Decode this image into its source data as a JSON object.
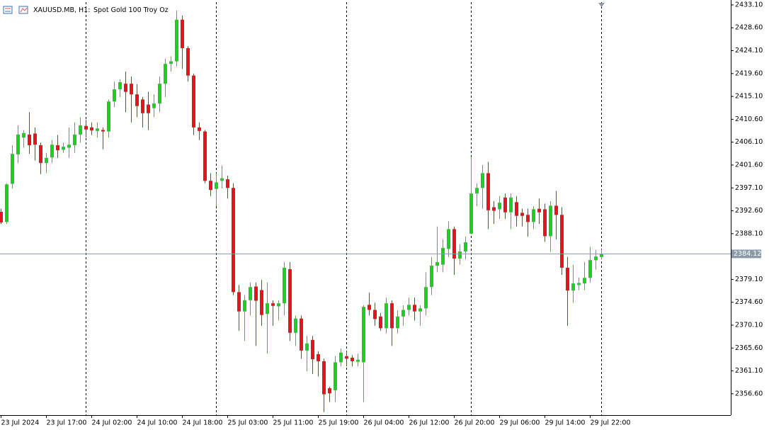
{
  "chart_data": {
    "type": "candlestick",
    "title": "XAUUSD.MB, H1:",
    "subtitle": "Spot Gold 100 Troy Oz",
    "categories": [
      "23 Jul 2024",
      null,
      null,
      null,
      null,
      null,
      null,
      null,
      "23 Jul 17:00",
      null,
      null,
      null,
      null,
      null,
      null,
      null,
      "24 Jul 02:00",
      null,
      null,
      null,
      null,
      null,
      null,
      null,
      "24 Jul 10:00",
      null,
      null,
      null,
      null,
      null,
      null,
      null,
      "24 Jul 18:00",
      null,
      null,
      null,
      null,
      null,
      null,
      null,
      "25 Jul 03:00",
      null,
      null,
      null,
      null,
      null,
      null,
      null,
      "25 Jul 11:00",
      null,
      null,
      null,
      null,
      null,
      null,
      null,
      "25 Jul 19:00",
      null,
      null,
      null,
      null,
      null,
      null,
      null,
      "26 Jul 04:00",
      null,
      null,
      null,
      null,
      null,
      null,
      null,
      "26 Jul 12:00",
      null,
      null,
      null,
      null,
      null,
      null,
      null,
      "26 Jul 20:00",
      null,
      null,
      null,
      null,
      null,
      null,
      null,
      "29 Jul 06:00",
      null,
      null,
      null,
      null,
      null,
      null,
      null,
      "29 Jul 14:00",
      null,
      null,
      null,
      null,
      null,
      null,
      null,
      "29 Jul 22:00",
      null,
      null
    ],
    "open": [
      2392.4,
      2390.4,
      2397.9,
      2403.7,
      2407,
      2407.6,
      2407.8,
      2405.5,
      2402,
      2403.1,
      2405.5,
      2404.6,
      2405,
      2405.5,
      2407.6,
      2409.3,
      2409,
      2408.3,
      2408.5,
      2408.2,
      2414.1,
      2416.5,
      2417.6,
      2417.6,
      2415.5,
      2414.5,
      2413.5,
      2412.8,
      2413.7,
      2417.6,
      2421.5,
      2422,
      2430.2,
      2424.6,
      2419.2,
      2409,
      2408.2,
      2398.5,
      2396.9,
      2398.5,
      2398.8,
      2397.1,
      2376.6,
      2372.8,
      2375,
      2377.7,
      2377,
      2372.3,
      2374.4,
      2373.8,
      2374.4,
      2381.1,
      2368.6,
      2371.4,
      2365.1,
      2367.2,
      2364.4,
      2363,
      2357.7,
      2357.3,
      2362.8,
      2364,
      2363.7,
      2362.9,
      2362.8,
      2374.1,
      2373.1,
      2371.8,
      2369.5,
      2374.4,
      2369.5,
      2371.8,
      2373.1,
      2374.1,
      2372.8,
      2373.4,
      2377.6,
      2381.8,
      2382,
      2385.1,
      2389,
      2383.2,
      2384.6,
      2388.1,
      2396,
      2397.1,
      2400,
      2393.3,
      2392.9,
      2395.2,
      2392.3,
      2394.3,
      2392.2,
      2391.8,
      2390.4,
      2393,
      2392.9,
      2387.6,
      2393.6,
      2391.8,
      2381.4,
      2376.9,
      2378,
      2378.3,
      2379.4,
      2382.9,
      2383.5
    ],
    "high": [
      2393,
      2398,
      2405.5,
      2409.4,
      2408.5,
      2412,
      2409,
      2406,
      2404,
      2406.5,
      2407.5,
      2406,
      2409,
      2410,
      2411,
      2410.5,
      2410,
      2410,
      2409,
      2414.5,
      2418,
      2418.5,
      2420,
      2419,
      2417.5,
      2415,
      2416,
      2415.5,
      2419,
      2422.5,
      2423,
      2432,
      2431,
      2425,
      2419.6,
      2410,
      2408.5,
      2400,
      2400,
      2401.5,
      2399.5,
      2398,
      2378,
      2376,
      2378.5,
      2378.5,
      2379,
      2378.5,
      2375,
      2375,
      2382.5,
      2382.5,
      2372,
      2372,
      2368,
      2368,
      2365,
      2363.5,
      2358,
      2364,
      2365.5,
      2365,
      2364.2,
      2364.5,
      2374,
      2376.5,
      2374.5,
      2372.5,
      2375.5,
      2375,
      2373,
      2374,
      2375.5,
      2375.5,
      2374,
      2380.5,
      2383.5,
      2389.5,
      2387,
      2390.5,
      2389.5,
      2386,
      2387.5,
      2403.2,
      2398,
      2401.6,
      2402.2,
      2394.5,
      2395.5,
      2396,
      2396,
      2395.5,
      2393,
      2393,
      2393.5,
      2395,
      2394,
      2394.5,
      2396.5,
      2393.3,
      2383.5,
      2382,
      2379.5,
      2382.5,
      2385.5,
      2384.9,
      2385
    ],
    "low": [
      2390,
      2390,
      2397,
      2402,
      2405,
      2403.8,
      2402.5,
      2399.8,
      2400,
      2402,
      2403,
      2404,
      2403,
      2404,
      2406,
      2407,
      2407.5,
      2407,
      2404.7,
      2407,
      2413,
      2415,
      2412,
      2410,
      2411,
      2409,
      2408.5,
      2411,
      2412,
      2415,
      2420,
      2421,
      2420.5,
      2418,
      2407.5,
      2406.5,
      2398,
      2395.5,
      2393.5,
      2397,
      2395,
      2376,
      2369,
      2367,
      2372,
      2366,
      2370,
      2364.5,
      2370,
      2371,
      2372,
      2367,
      2366,
      2363.5,
      2361,
      2360.5,
      2360,
      2353,
      2355,
      2355,
      2362,
      2362,
      2362,
      2362,
      2355,
      2372,
      2370,
      2369,
      2368.5,
      2366,
      2368.5,
      2370,
      2372,
      2371,
      2370,
      2372,
      2376,
      2380.5,
      2380.5,
      2383.5,
      2380,
      2382,
      2383,
      2388,
      2393.5,
      2393,
      2389,
      2390,
      2391,
      2391,
      2389,
      2389.5,
      2389.5,
      2387.5,
      2389,
      2390,
      2386.5,
      2384.5,
      2387,
      2380,
      2370,
      2374.5,
      2377,
      2377,
      2378.5,
      2381,
      2383
    ],
    "close": [
      2390.3,
      2397.8,
      2403.8,
      2407.6,
      2407.9,
      2405.5,
      2405.6,
      2402,
      2403,
      2405.6,
      2404.5,
      2405.2,
      2405.6,
      2407.6,
      2409.4,
      2408.6,
      2408.4,
      2408.8,
      2408.2,
      2414.1,
      2416.5,
      2417.9,
      2416,
      2415.5,
      2413.2,
      2411.8,
      2411.8,
      2413.7,
      2417.6,
      2421.5,
      2422,
      2430.2,
      2424.6,
      2419.2,
      2409,
      2408.3,
      2398.5,
      2396.7,
      2398.2,
      2399,
      2397.1,
      2376.6,
      2372.8,
      2375,
      2377.6,
      2374.9,
      2372.1,
      2374.4,
      2373.9,
      2374.4,
      2381.4,
      2368.6,
      2371.4,
      2365.1,
      2366.5,
      2363.4,
      2363,
      2356.5,
      2356.7,
      2362.8,
      2364.7,
      2363.5,
      2363,
      2363.3,
      2373.7,
      2373.1,
      2371.3,
      2369.5,
      2374.4,
      2369.5,
      2371.8,
      2373.1,
      2374.1,
      2372.8,
      2373.4,
      2377.6,
      2381.8,
      2382.5,
      2385.3,
      2389,
      2383.2,
      2384.6,
      2386.4,
      2396,
      2397.1,
      2400,
      2392.7,
      2392.6,
      2394.2,
      2392.3,
      2395.2,
      2391.6,
      2391.6,
      2390.4,
      2392.9,
      2392.3,
      2387.6,
      2393.6,
      2391.8,
      2381.4,
      2376.9,
      2378.3,
      2378.4,
      2379.4,
      2382.9,
      2383.6,
      2384.12
    ],
    "up_color": "#1fcf1f",
    "down_color": "#e3141c",
    "current_price": 2384.12,
    "ylim": [
      2352.4,
      2433.65
    ],
    "yticks": [
      {
        "value": 2433.1,
        "label": "2433.10"
      },
      {
        "value": 2428.6,
        "label": "2428.60"
      },
      {
        "value": 2424.1,
        "label": "2424.10"
      },
      {
        "value": 2419.6,
        "label": "2419.60"
      },
      {
        "value": 2415.1,
        "label": "2415.10"
      },
      {
        "value": 2410.6,
        "label": "2410.60"
      },
      {
        "value": 2406.1,
        "label": "2406.10"
      },
      {
        "value": 2401.6,
        "label": "2401.60"
      },
      {
        "value": 2397.1,
        "label": "2397.10"
      },
      {
        "value": 2392.6,
        "label": "2392.60"
      },
      {
        "value": 2388.1,
        "label": "2388.10"
      },
      {
        "value": 2379.1,
        "label": "2379.10"
      },
      {
        "value": 2374.6,
        "label": "2374.60"
      },
      {
        "value": 2370.1,
        "label": "2370.10"
      },
      {
        "value": 2365.6,
        "label": "2365.60"
      },
      {
        "value": 2361.1,
        "label": "2361.10"
      },
      {
        "value": 2356.6,
        "label": "2356.60"
      }
    ]
  }
}
